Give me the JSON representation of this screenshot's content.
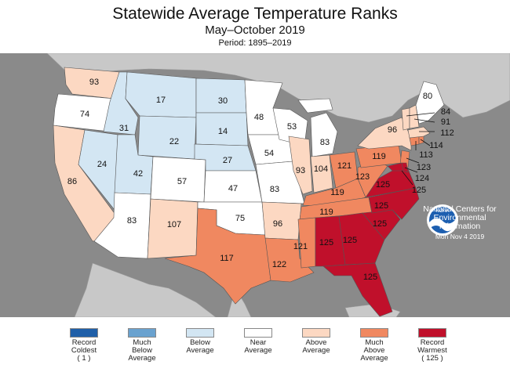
{
  "header": {
    "title": "Statewide Average Temperature Ranks",
    "subtitle": "May–October 2019",
    "period": "Period: 1895–2019"
  },
  "colors": {
    "background_map": "#8a8a8a",
    "ocean": "#8a8a8a",
    "land_outside": "#c8c8c8",
    "record_coldest": "#1f5fa8",
    "much_below": "#6aa2cf",
    "below": "#d3e6f3",
    "near": "#ffffff",
    "above": "#fcd8c2",
    "much_above": "#f08860",
    "record_warmest": "#c0102b"
  },
  "states": {
    "WA": "93",
    "OR": "74",
    "CA": "86",
    "ID": "31",
    "NV": "24",
    "MT": "17",
    "WY": "22",
    "UT": "42",
    "AZ": "83",
    "CO": "57",
    "NM": "107",
    "ND": "30",
    "SD": "14",
    "NE": "27",
    "KS": "47",
    "OK": "75",
    "TX": "117",
    "MN": "48",
    "IA": "54",
    "MO": "83",
    "AR": "96",
    "LA": "122",
    "WI": "53",
    "IL": "93",
    "MI": "83",
    "IN": "104",
    "OH": "121",
    "KY": "119",
    "TN": "119",
    "MS": "121",
    "AL": "125",
    "GA": "125",
    "FL": "125",
    "SC": "125",
    "NC": "125",
    "VA": "125",
    "WV": "123",
    "PA": "119",
    "NY": "96",
    "ME": "80",
    "VT": "84",
    "NH": "91",
    "MA": "112",
    "RI": "114",
    "CT": "113",
    "NJ": "123",
    "DE": "124",
    "MD": "125"
  },
  "noaa": {
    "logo_text": "NOAA",
    "org": "National Centers for\nEnvironmental\nInformation",
    "date": "Mon Nov  4 2019"
  },
  "legend": [
    {
      "label": "Record\nColdest\n( 1 )",
      "color": "#1f5fa8"
    },
    {
      "label": "Much\nBelow\nAverage",
      "color": "#6aa2cf"
    },
    {
      "label": "Below\nAverage",
      "color": "#d3e6f3"
    },
    {
      "label": "Near\nAverage",
      "color": "#ffffff"
    },
    {
      "label": "Above\nAverage",
      "color": "#fcd8c2"
    },
    {
      "label": "Much\nAbove\nAverage",
      "color": "#f08860"
    },
    {
      "label": "Record\nWarmest\n( 125 )",
      "color": "#c0102b"
    }
  ]
}
